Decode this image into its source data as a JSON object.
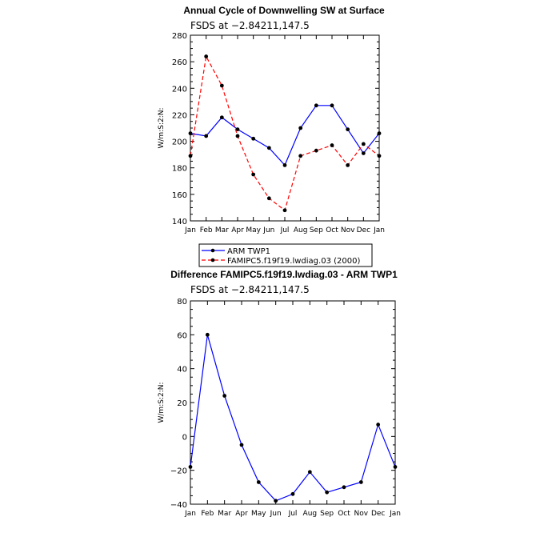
{
  "chart_data": [
    {
      "type": "line",
      "title": "Annual Cycle of Downwelling SW at Surface",
      "subtitle": "FSDS at −2.84211,147.5",
      "ylabel": "W/m:S:2:N:",
      "xlabel": "",
      "categories": [
        "Jan",
        "Feb",
        "Mar",
        "Apr",
        "May",
        "Jun",
        "Jul",
        "Aug",
        "Sep",
        "Oct",
        "Nov",
        "Dec",
        "Jan"
      ],
      "ylim": [
        140,
        280
      ],
      "yticks": [
        140,
        160,
        180,
        200,
        220,
        240,
        260,
        280
      ],
      "series": [
        {
          "name": "ARM  TWP1",
          "color": "#0000ff",
          "dashed": false,
          "values": [
            206,
            204,
            218,
            209,
            202,
            195,
            182,
            210,
            227,
            227,
            209,
            191,
            206
          ]
        },
        {
          "name": "FAMIPC5.f19f19.lwdiag.03 (2000)",
          "color": "#ff0000",
          "dashed": true,
          "values": [
            189,
            264,
            242,
            204,
            175,
            157,
            148,
            189,
            193,
            197,
            182,
            198,
            189
          ]
        }
      ],
      "legend": "below"
    },
    {
      "type": "line",
      "title": "Difference FAMIPC5.f19f19.lwdiag.03 - ARM TWP1",
      "subtitle": "FSDS at −2.84211,147.5",
      "ylabel": "W/m:S:2:N:",
      "xlabel": "",
      "categories": [
        "Jan",
        "Feb",
        "Mar",
        "Apr",
        "May",
        "Jun",
        "Jul",
        "Aug",
        "Sep",
        "Oct",
        "Nov",
        "Dec",
        "Jan"
      ],
      "ylim": [
        -40,
        80
      ],
      "yticks": [
        -40,
        -20,
        0,
        20,
        40,
        60,
        80
      ],
      "series": [
        {
          "color": "#0000ff",
          "dashed": false,
          "values": [
            -18,
            60,
            24,
            -5,
            -27,
            -38,
            -34,
            -21,
            -33,
            -30,
            -27,
            7,
            -18
          ]
        }
      ]
    }
  ]
}
